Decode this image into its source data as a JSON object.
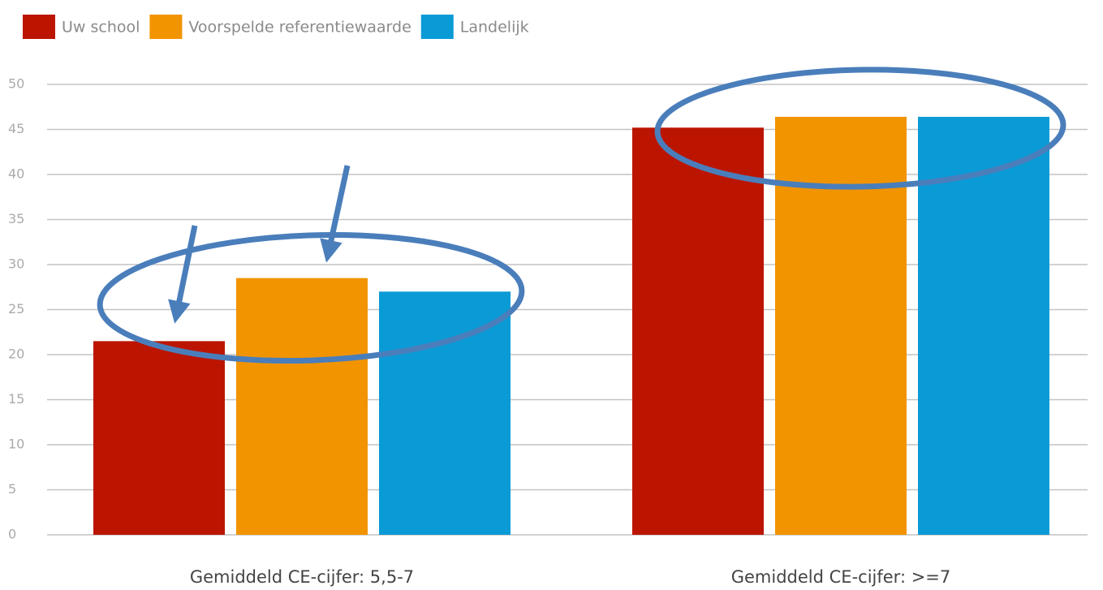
{
  "chart_data": {
    "type": "bar",
    "categories": [
      "Gemiddeld CE-cijfer: 5,5-7",
      "Gemiddeld CE-cijfer: >=7"
    ],
    "series": [
      {
        "name": "Uw school",
        "color": "#bb1500",
        "values": [
          21.5,
          45.2
        ]
      },
      {
        "name": "Voorspelde referentiewaarde",
        "color": "#f29400",
        "values": [
          28.5,
          46.4
        ]
      },
      {
        "name": "Landelijk",
        "color": "#0a9bd6",
        "values": [
          27.0,
          46.4
        ]
      }
    ],
    "ylim": [
      0,
      50
    ],
    "yticks": [
      0,
      5,
      10,
      15,
      20,
      25,
      30,
      35,
      40,
      45,
      50
    ],
    "grid": true,
    "legend": "top-left"
  }
}
